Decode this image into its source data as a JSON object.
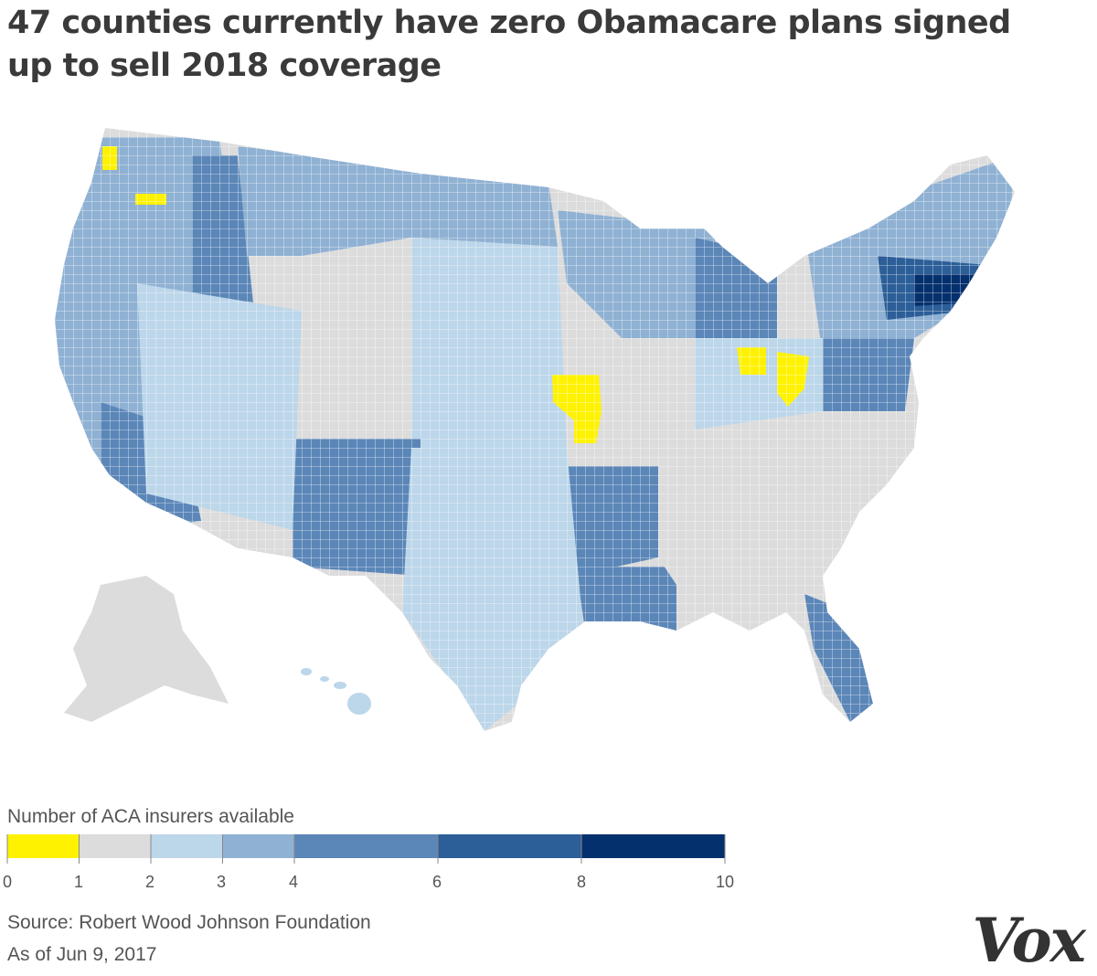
{
  "title_lines": [
    "47 counties currently have zero Obamacare plans signed",
    "up to sell 2018 coverage"
  ],
  "legend": {
    "title": "Number of ACA insurers available",
    "bins": [
      {
        "from": 0,
        "to": 1,
        "color": "#fff200"
      },
      {
        "from": 1,
        "to": 2,
        "color": "#dcdcdc"
      },
      {
        "from": 2,
        "to": 3,
        "color": "#bcd6ea"
      },
      {
        "from": 3,
        "to": 4,
        "color": "#8fb1d3"
      },
      {
        "from": 4,
        "to": 6,
        "color": "#5b86b8"
      },
      {
        "from": 6,
        "to": 8,
        "color": "#2c5e98"
      },
      {
        "from": 8,
        "to": 10,
        "color": "#05306e"
      }
    ],
    "tick_labels": [
      "0",
      "1",
      "2",
      "3",
      "4",
      "6",
      "8",
      "10"
    ]
  },
  "source": "Source: Robert Wood Johnson Foundation",
  "as_of": "As of Jun 9, 2017",
  "logo": "Vox",
  "map": {
    "region": "United States counties",
    "highlighted_zero_insurer_areas": [
      "Washington (northwest)",
      "Washington (south-central)",
      "Missouri",
      "Ohio"
    ]
  }
}
